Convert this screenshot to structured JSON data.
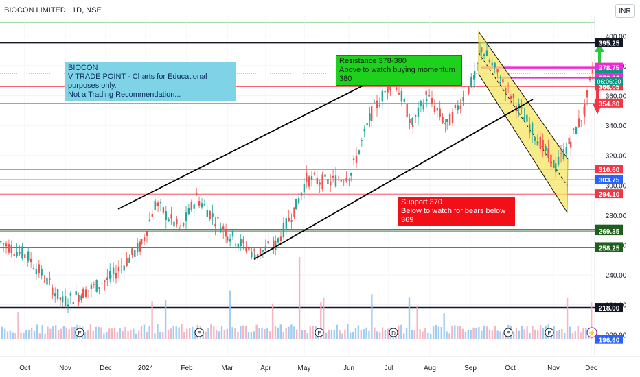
{
  "header": {
    "symbol": "BIOCON LIMITED., 1D, NSE",
    "currency": "INR"
  },
  "annotations": {
    "info": [
      "BIOCON",
      "V TRADE POINT - Charts for Educational purposes only.",
      "Not a Trading Recommendation..."
    ],
    "resistance": [
      "Resistance  378-380",
      "Above to watch buying momentum 380"
    ],
    "support": [
      "Support 370",
      "Below to watch for bears below 369"
    ]
  },
  "colors": {
    "up": "#26a69a",
    "down": "#ef5350",
    "yellow_channel": "#f5e663",
    "resistance_zone": "#e92bd8",
    "green_arrow": "#27c93f",
    "red_arrow": "#f23645"
  },
  "chart_data": {
    "type": "candlestick",
    "x_ticks": [
      "Oct",
      "Nov",
      "Dec",
      "2024",
      "Feb",
      "Mar",
      "Apr",
      "May",
      "Jun",
      "Jul",
      "Aug",
      "Sep",
      "Oct",
      "Nov",
      "Dec"
    ],
    "y_ticks": [
      400.0,
      380.0,
      360.0,
      340.0,
      320.0,
      300.0,
      280.0,
      260.0,
      240.0,
      220.0,
      200.0
    ],
    "ylim": [
      196,
      402
    ],
    "price_path": [
      {
        "month": "Sep 2023",
        "close": 262
      },
      {
        "month": "Oct 2023",
        "close": 252
      },
      {
        "month": "Nov 2023",
        "close": 222
      },
      {
        "month": "Nov 2023",
        "close": 228
      },
      {
        "month": "Dec 2023",
        "close": 238
      },
      {
        "month": "2024",
        "close": 260
      },
      {
        "month": "2024",
        "close": 288
      },
      {
        "month": "Feb 2024",
        "close": 270
      },
      {
        "month": "Feb 2024",
        "close": 292
      },
      {
        "month": "Mar 2024",
        "close": 268
      },
      {
        "month": "Mar 2024",
        "close": 254
      },
      {
        "month": "Apr 2024",
        "close": 260
      },
      {
        "month": "Apr 2024",
        "close": 286
      },
      {
        "month": "May 2024",
        "close": 304
      },
      {
        "month": "May 2024",
        "close": 302
      },
      {
        "month": "Jun 2024",
        "close": 308
      },
      {
        "month": "Jun 2024",
        "close": 348
      },
      {
        "month": "Jul 2024",
        "close": 372
      },
      {
        "month": "Jul 2024",
        "close": 340
      },
      {
        "month": "Aug 2024",
        "close": 360
      },
      {
        "month": "Aug 2024",
        "close": 340
      },
      {
        "month": "Sep 2024",
        "close": 372
      },
      {
        "month": "Sep 2024",
        "close": 392
      },
      {
        "month": "Oct 2024",
        "close": 366
      },
      {
        "month": "Oct 2024",
        "close": 340
      },
      {
        "month": "Nov 2024",
        "close": 312
      },
      {
        "month": "Nov 2024",
        "close": 330
      },
      {
        "month": "Nov 2024",
        "close": 350
      },
      {
        "month": "Dec 2024",
        "close": 378
      }
    ],
    "horizontal_levels": [
      {
        "value": 395.25,
        "label": "395.25",
        "color": "#131722"
      },
      {
        "value": 378.75,
        "label": "378.75",
        "color": "#e92bd8"
      },
      {
        "value": 374.9,
        "label": "374.90",
        "color": "#089981"
      },
      {
        "value": 372.0,
        "label": "372.00",
        "color": "#e92bd8"
      },
      {
        "value": 366.05,
        "label": "366.05",
        "color": "#f23645"
      },
      {
        "value": 354.8,
        "label": "354.80",
        "color": "#f23645"
      },
      {
        "value": 310.6,
        "label": "310.60",
        "color": "#f23645"
      },
      {
        "value": 303.75,
        "label": "303.75",
        "color": "#2962ff"
      },
      {
        "value": 294.1,
        "label": "294.10",
        "color": "#f23645"
      },
      {
        "value": 270.45,
        "label": "270.45",
        "color": "#1e5f1e"
      },
      {
        "value": 269.35,
        "label": "269.35",
        "color": "#1e5f1e"
      },
      {
        "value": 258.65,
        "label": "258.65",
        "color": "#1e5f1e"
      },
      {
        "value": 258.25,
        "label": "258.25",
        "color": "#1e5f1e"
      },
      {
        "value": 218.0,
        "label": "218.00",
        "color": "#131722"
      },
      {
        "value": 196.6,
        "label": "196.60",
        "color": "#2962ff"
      }
    ],
    "countdown_label": "06:06:20",
    "grid": true
  }
}
